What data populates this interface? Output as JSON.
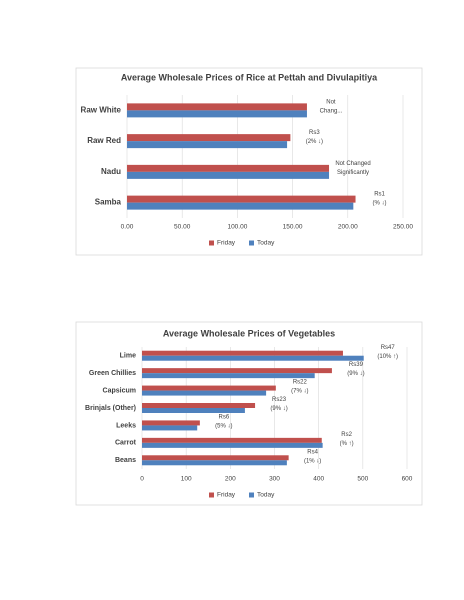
{
  "chart_data": [
    {
      "type": "bar",
      "horizontal": true,
      "title": "Average Wholesale Prices of Rice at Pettah and Divulapitiya",
      "categories": [
        "Raw White",
        "Raw Red",
        "Nadu",
        "Samba"
      ],
      "series": [
        {
          "name": "Friday",
          "color": "#c0504d",
          "values": [
            163,
            148,
            183,
            207
          ]
        },
        {
          "name": "Today",
          "color": "#4f81bd",
          "values": [
            163,
            145,
            183,
            205
          ]
        }
      ],
      "annotations": [
        [
          "Not",
          "Chang..."
        ],
        [
          "Rs3",
          "(2% ↓)"
        ],
        [
          "Not Changed",
          "Significantly"
        ],
        [
          "Rs1",
          "(% ↓)"
        ]
      ],
      "xlim": [
        0,
        250
      ],
      "xticks": [
        {
          "value": 0,
          "label": "0.00"
        },
        {
          "value": 50,
          "label": "50.00"
        },
        {
          "value": 100,
          "label": "100.00"
        },
        {
          "value": 150,
          "label": "150.00"
        },
        {
          "value": 200,
          "label": "200.00"
        },
        {
          "value": 250,
          "label": "250.00"
        }
      ],
      "grid": true,
      "legend": "bottom"
    },
    {
      "type": "bar",
      "horizontal": true,
      "title": "Average Wholesale Prices of Vegetables",
      "categories": [
        "Lime",
        "Green Chillies",
        "Capsicum",
        "Brinjals (Other)",
        "Leeks",
        "Carrot",
        "Beans"
      ],
      "series": [
        {
          "name": "Friday",
          "color": "#c0504d",
          "values": [
            455,
            430,
            303,
            256,
            131,
            407,
            332
          ]
        },
        {
          "name": "Today",
          "color": "#4f81bd",
          "values": [
            502,
            391,
            281,
            233,
            125,
            409,
            328
          ]
        }
      ],
      "annotations": [
        [
          "Rs47",
          "(10% ↑)"
        ],
        [
          "Rs39",
          "(9% ↓)"
        ],
        [
          "Rs22",
          "(7% ↓)"
        ],
        [
          "Rs23",
          "(9% ↓)"
        ],
        [
          "Rs6",
          "(5% ↓)"
        ],
        [
          "Rs2",
          "(% ↑)"
        ],
        [
          "Rs4",
          "(1% ↓)"
        ]
      ],
      "xlim": [
        0,
        600
      ],
      "xticks": [
        0,
        100,
        200,
        300,
        400,
        500,
        600
      ],
      "grid": true,
      "legend": "bottom"
    }
  ]
}
